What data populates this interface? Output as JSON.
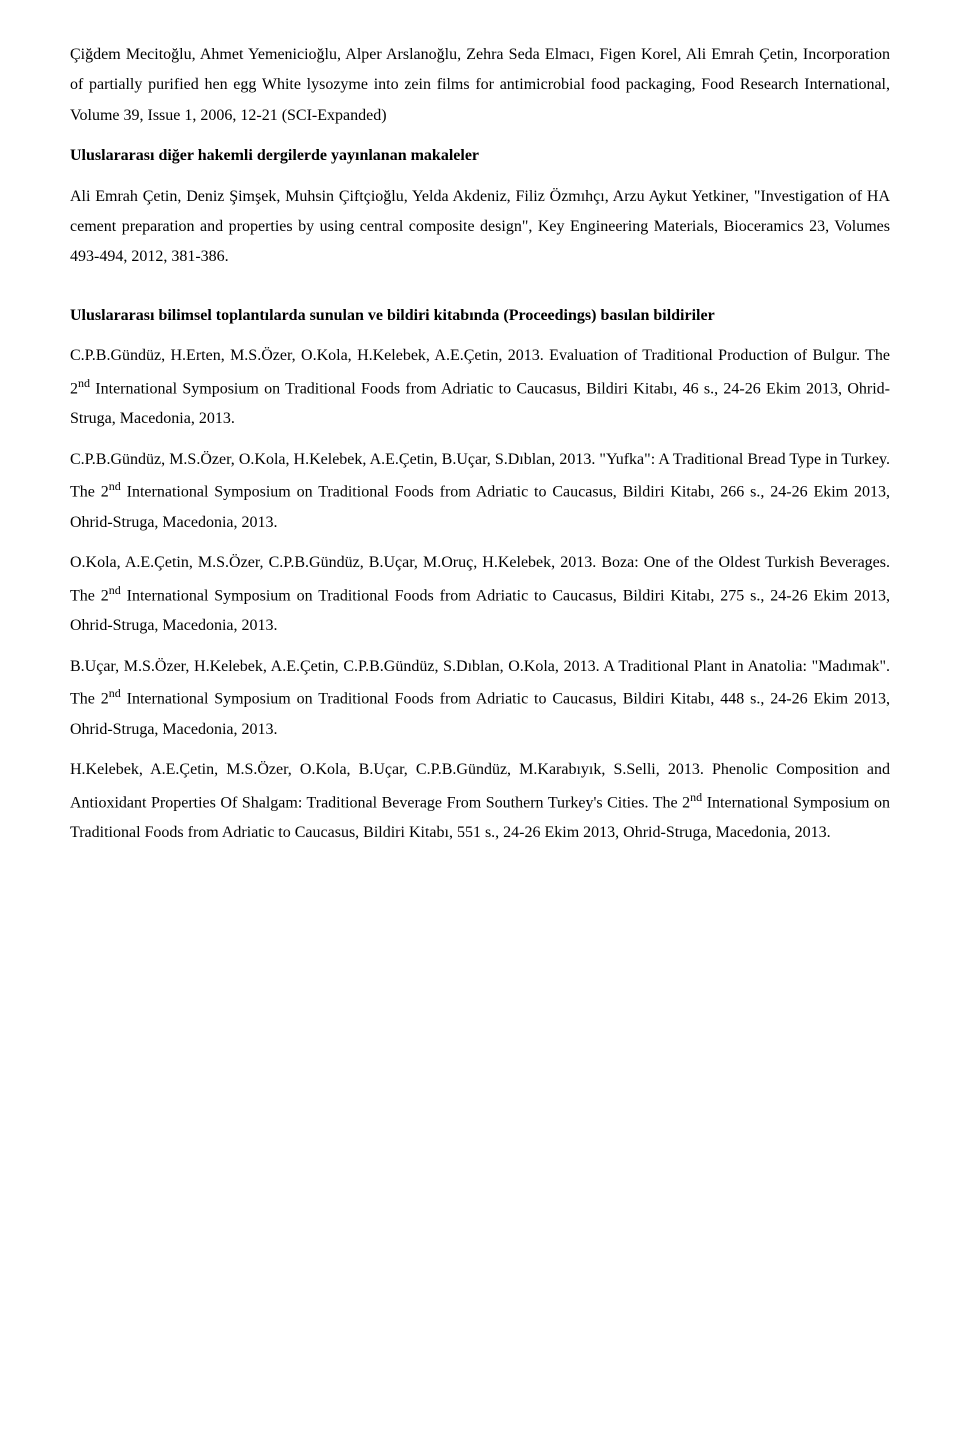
{
  "p1": "Çiğdem Mecitoğlu, Ahmet Yemenicioğlu, Alper Arslanoğlu, Zehra Seda Elmacı, Figen Korel, Ali Emrah Çetin, Incorporation of partially purified hen egg White lysozyme into zein films for antimicrobial food packaging, Food Research International, Volume 39, Issue 1, 2006, 12-21 (SCI-Expanded)",
  "h1": "Uluslararası diğer hakemli dergilerde yayınlanan makaleler",
  "p2": "Ali Emrah Çetin, Deniz Şimşek, Muhsin Çiftçioğlu, Yelda Akdeniz, Filiz Özmıhçı, Arzu Aykut Yetkiner, \"Investigation of HA cement preparation and properties by using central composite design\", Key Engineering Materials, Bioceramics 23, Volumes 493-494, 2012, 381-386.",
  "h2": "Uluslararası bilimsel toplantılarda sunulan ve bildiri kitabında (Proceedings) basılan bildiriler",
  "p3a": "C.P.B.Gündüz, H.Erten, M.S.Özer, O.Kola, H.Kelebek, A.E.Çetin, 2013. Evaluation of Traditional Production of Bulgur. The 2",
  "p3b": " International Symposium on Traditional Foods from Adriatic to Caucasus, Bildiri Kitabı, 46 s., 24-26 Ekim 2013, Ohrid-Struga, Macedonia, 2013.",
  "p4a": "C.P.B.Gündüz, M.S.Özer, O.Kola, H.Kelebek, A.E.Çetin, B.Uçar, S.Dıblan, 2013. \"Yufka\": A Traditional Bread Type in Turkey. The 2",
  "p4b": " International Symposium on Traditional Foods from Adriatic to Caucasus, Bildiri Kitabı, 266 s., 24-26 Ekim 2013, Ohrid-Struga, Macedonia, 2013.",
  "p5a": "O.Kola, A.E.Çetin, M.S.Özer, C.P.B.Gündüz, B.Uçar, M.Oruç, H.Kelebek, 2013. Boza: One of the Oldest Turkish Beverages. The 2",
  "p5b": " International Symposium on Traditional Foods from Adriatic to Caucasus, Bildiri Kitabı, 275 s., 24-26 Ekim 2013, Ohrid-Struga, Macedonia, 2013.",
  "p6a": "B.Uçar, M.S.Özer, H.Kelebek, A.E.Çetin, C.P.B.Gündüz, S.Dıblan, O.Kola, 2013. A Traditional Plant in Anatolia: \"Madımak\". The 2",
  "p6b": " International Symposium on Traditional Foods from Adriatic to Caucasus, Bildiri Kitabı, 448 s., 24-26 Ekim 2013, Ohrid-Struga, Macedonia, 2013.",
  "p7a": "H.Kelebek, A.E.Çetin, M.S.Özer, O.Kola, B.Uçar, C.P.B.Gündüz, M.Karabıyık, S.Selli, 2013. Phenolic Composition and Antioxidant Properties Of Shalgam: Traditional Beverage From Southern Turkey's Cities. The 2",
  "p7b": " International Symposium on Traditional Foods from Adriatic to Caucasus, Bildiri Kitabı, 551 s., 24-26 Ekim 2013, Ohrid-Struga, Macedonia, 2013.",
  "sup": "nd"
}
